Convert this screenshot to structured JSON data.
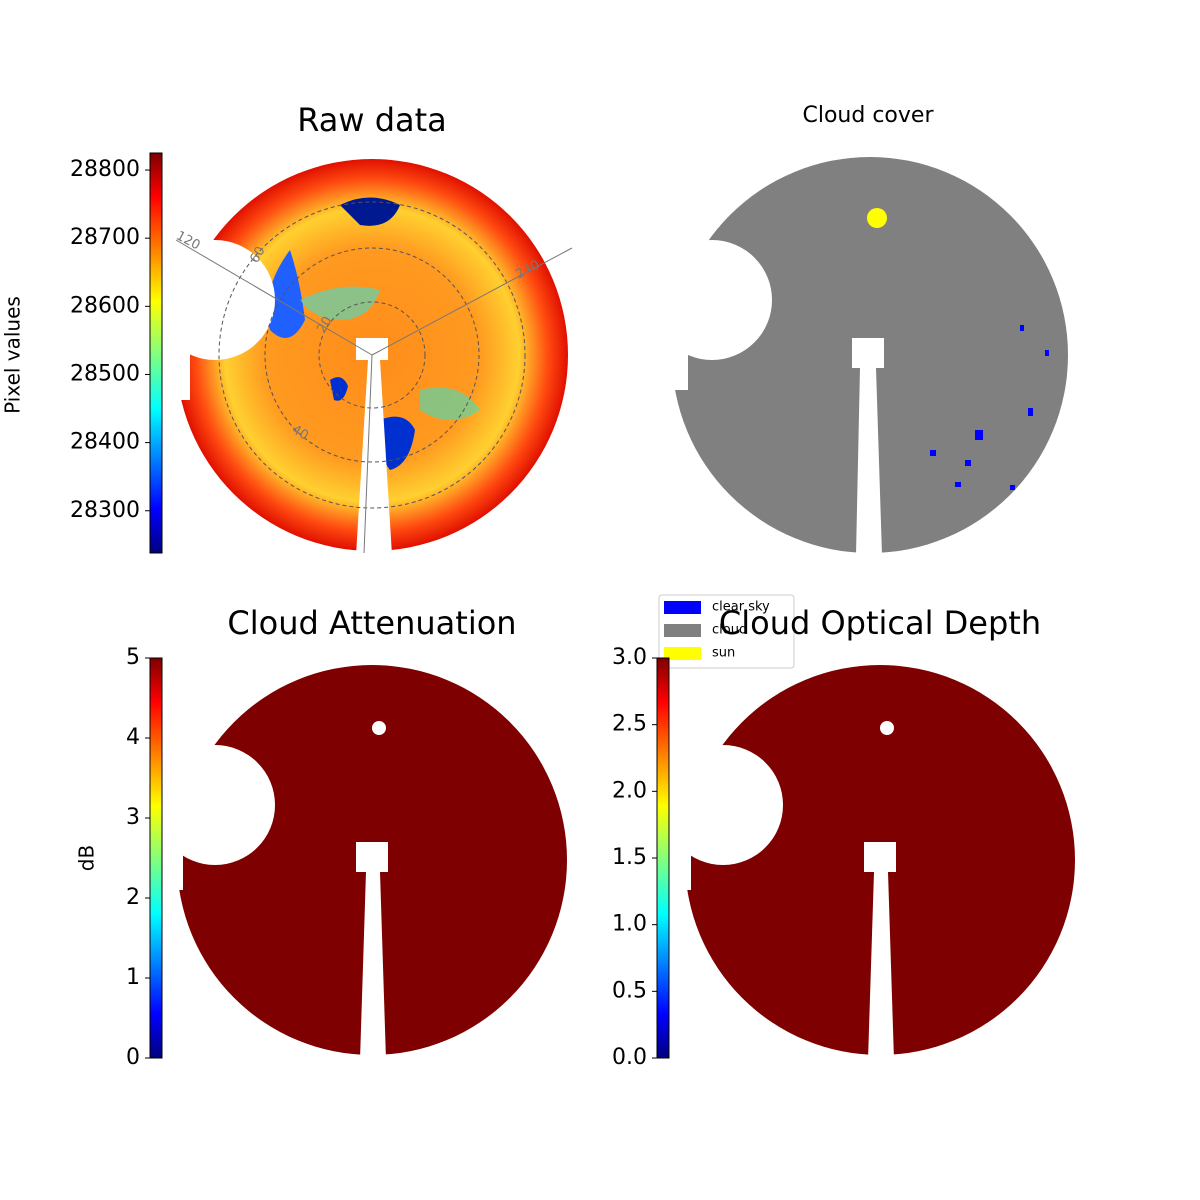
{
  "panels": [
    {
      "title": "Raw data",
      "colorbar": {
        "label": "Pixel values",
        "colormap": "jet",
        "lim": [
          28238,
          28825
        ],
        "ticks": [
          28300,
          28400,
          28500,
          28600,
          28700,
          28800
        ]
      },
      "polar_labels": [
        "120",
        "60",
        "20",
        "40",
        "240"
      ]
    },
    {
      "title": "Cloud cover",
      "legend": [
        {
          "name": "clear sky",
          "color": "#0000ff"
        },
        {
          "name": "cloud",
          "color": "#808080"
        },
        {
          "name": "sun",
          "color": "#ffff00"
        }
      ]
    },
    {
      "title": "Cloud Attenuation",
      "colorbar": {
        "label": "dB",
        "colormap": "jet",
        "lim": [
          0,
          5
        ],
        "ticks": [
          0,
          1,
          2,
          3,
          4,
          5
        ]
      }
    },
    {
      "title": "Cloud Optical Depth",
      "colorbar": {
        "colormap": "jet",
        "lim": [
          0,
          3
        ],
        "ticks": [
          {
            "value": 0,
            "label": "0.0"
          },
          {
            "value": 0.5,
            "label": "0.5"
          },
          {
            "value": 1,
            "label": "1.0"
          },
          {
            "value": 1.5,
            "label": "1.5"
          },
          {
            "value": 2,
            "label": "2.0"
          },
          {
            "value": 2.5,
            "label": "2.5"
          },
          {
            "value": 3,
            "label": "3.0"
          }
        ]
      }
    }
  ]
}
